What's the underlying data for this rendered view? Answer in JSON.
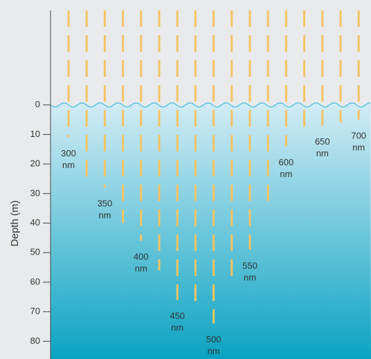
{
  "chart_data": {
    "type": "depth-dashes",
    "y_label": "Depth (m)",
    "unit": "nm",
    "categories": [
      300,
      null,
      350,
      null,
      400,
      null,
      450,
      null,
      500,
      null,
      550,
      null,
      600,
      null,
      650,
      null,
      700
    ],
    "values": [
      11,
      25,
      28,
      40,
      46,
      56,
      66,
      68,
      74,
      60,
      49,
      33,
      14,
      10,
      7,
      6,
      5
    ],
    "color": "#f5c363",
    "water_color_top": "#d3ecf5",
    "water_color_bottom": "#0aa3c2",
    "surface_color": "#5cc3df",
    "ylim": [
      -32,
      86
    ],
    "yticks": [
      0,
      10,
      20,
      30,
      40,
      50,
      60,
      70,
      80
    ],
    "inverted": true
  }
}
